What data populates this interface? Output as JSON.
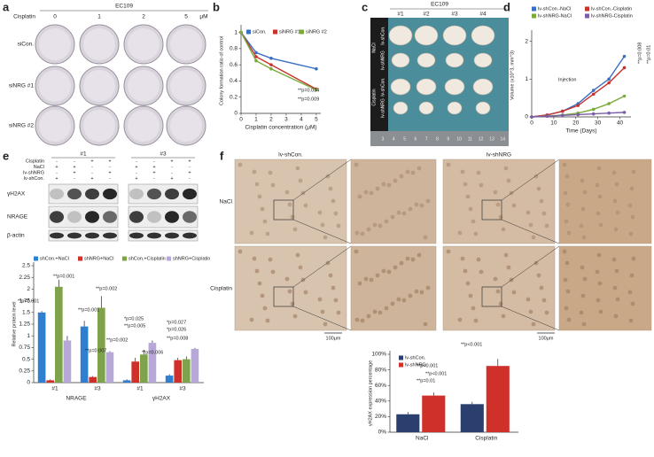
{
  "panels": {
    "a": {
      "letter": "a",
      "title": "EC109",
      "dose_label": "Cisplatin",
      "doses": [
        "0",
        "1",
        "2",
        "5"
      ],
      "unit": "μM",
      "rows": [
        "siCon.",
        "siNRG #1",
        "siNRG #2"
      ]
    },
    "c": {
      "letter": "c",
      "title": "EC109",
      "mice": [
        "#1",
        "#2",
        "#3",
        "#4"
      ],
      "groups": [
        "NaCl",
        "Cisplatin"
      ],
      "rows": [
        "lv-shCon.",
        "lv-shNRG",
        "lv-shCon.",
        "lv-shNRG"
      ],
      "ruler": [
        "3",
        "4",
        "5",
        "6",
        "7",
        "8",
        "9",
        "10",
        "11",
        "12",
        "13",
        "14"
      ]
    },
    "e": {
      "letter": "e",
      "treatments": [
        "Cisplatin",
        "NaCl",
        "lv-shNRG",
        "lv-shCon."
      ],
      "signs": [
        [
          "-",
          "-",
          "+",
          "+",
          "-",
          "-",
          "+",
          "+"
        ],
        [
          "+",
          "+",
          "-",
          "-",
          "+",
          "+",
          "-",
          "-"
        ],
        [
          "-",
          "+",
          "-",
          "+",
          "-",
          "+",
          "-",
          "+"
        ],
        [
          "+",
          "-",
          "+",
          "-",
          "+",
          "-",
          "+",
          "-"
        ]
      ],
      "clones": [
        "#1",
        "#3"
      ],
      "blots": [
        "γH2AX",
        "NRAGE",
        "β-actin"
      ]
    },
    "f": {
      "letter": "f",
      "columns": [
        "lv-shCon.",
        "lv-shNRG"
      ],
      "rows": [
        "NaCl",
        "Cisplatin"
      ],
      "scale_bars": [
        "100μm",
        "100μm"
      ]
    }
  },
  "chart_data": [
    {
      "panel": "b",
      "type": "line",
      "xlabel": "Cisplatin concentration (μM)",
      "ylabel": "Colony formation ratio of control",
      "x": [
        0,
        1,
        2,
        5
      ],
      "xlim": [
        0,
        5.3
      ],
      "xticks": [
        0,
        1,
        2,
        3,
        4,
        5
      ],
      "ylim": [
        0,
        1.05
      ],
      "yticks": [
        0,
        0.2,
        0.4,
        0.6,
        0.8,
        1
      ],
      "legend": "top",
      "series": [
        {
          "name": "siCon.",
          "color": "#3a6fc4",
          "values": [
            1,
            0.75,
            0.68,
            0.55
          ]
        },
        {
          "name": "siNRG #1",
          "color": "#c8322c",
          "values": [
            1,
            0.7,
            0.6,
            0.3
          ]
        },
        {
          "name": "siNRG #2",
          "color": "#7aab3a",
          "values": [
            1,
            0.65,
            0.55,
            0.29
          ]
        }
      ],
      "annotations": [
        "**p=0.034",
        "**p=0.009"
      ]
    },
    {
      "panel": "d",
      "type": "line",
      "xlabel": "Time (Days)",
      "ylabel": "Volume (x10^3, mm^3)",
      "x": [
        0,
        7,
        14,
        21,
        28,
        35,
        42
      ],
      "xlim": [
        0,
        45
      ],
      "xticks": [
        0,
        10,
        20,
        30,
        40
      ],
      "ylim": [
        0,
        2.2
      ],
      "yticks": [
        0,
        1,
        2
      ],
      "legend": "upper left",
      "series": [
        {
          "name": "lv-shCon.-NaCl",
          "color": "#3a6fc4",
          "values": [
            0,
            0.05,
            0.15,
            0.35,
            0.7,
            1.0,
            1.6
          ]
        },
        {
          "name": "lv-shCon.-Cisplatin",
          "color": "#c8322c",
          "values": [
            0,
            0.05,
            0.15,
            0.3,
            0.6,
            0.9,
            1.3
          ]
        },
        {
          "name": "lv-shNRG-NaCl",
          "color": "#7aab3a",
          "values": [
            0,
            0.02,
            0.05,
            0.1,
            0.2,
            0.35,
            0.55
          ]
        },
        {
          "name": "lv-shNRG-Cisplatin",
          "color": "#7a5ca8",
          "values": [
            0,
            0.02,
            0.04,
            0.06,
            0.08,
            0.1,
            0.12
          ]
        }
      ],
      "annotations": [
        "Injection",
        "**p=0.008",
        "**p=0.01"
      ]
    },
    {
      "type": "bar",
      "ylabel": "Relative protein level",
      "categories": [
        "#1",
        "#3",
        "#1",
        "#3"
      ],
      "groups": [
        "NRAGE",
        "γH2AX"
      ],
      "ylim": [
        0,
        2.5
      ],
      "yticks": [
        0,
        {
          "value": 0.25,
          "label": "0.25"
        },
        0.5,
        {
          "value": 0.75,
          "label": "0.75"
        },
        1,
        1.25,
        1.5,
        1.75,
        2,
        2.25,
        2.5
      ],
      "legend": "top",
      "series": [
        {
          "name": "shCon.+NaCl",
          "color": "#2f7fd0",
          "values": [
            1.5,
            1.2,
            0.05,
            0.15
          ],
          "errors": [
            0.03,
            0.12,
            0.02,
            0.03
          ]
        },
        {
          "name": "shNRG+NaCl",
          "color": "#d0302a",
          "values": [
            0.05,
            0.12,
            0.45,
            0.48
          ],
          "errors": [
            0.02,
            0.02,
            0.08,
            0.05
          ]
        },
        {
          "name": "shCon.+Cisplatin",
          "color": "#7fa34a",
          "values": [
            2.05,
            1.6,
            0.6,
            0.5
          ],
          "errors": [
            0.15,
            0.25,
            0.1,
            0.06
          ]
        },
        {
          "name": "shNRG+Cisplatin",
          "color": "#b8a8d8",
          "values": [
            0.9,
            0.65,
            0.85,
            0.72
          ],
          "errors": [
            0.1,
            0.02,
            0.05,
            0.02
          ]
        }
      ],
      "annotations": [
        "**p<0.001",
        "**p=0.001",
        "**p=0.001",
        "**p=0.002",
        "*p=0.025",
        "**p=0.005",
        "*p=0.027",
        "**p=0.002",
        "**p=0.007",
        "**p=0.008",
        "*p=0.026",
        "**p=0.006"
      ]
    },
    {
      "type": "bar",
      "ylabel": "γH2AX expression percentage",
      "categories": [
        "NaCl",
        "Cisplatin"
      ],
      "ylim": [
        0,
        100
      ],
      "yticks": [
        {
          "value": 0,
          "label": "0%"
        },
        {
          "value": 20,
          "label": "20%"
        },
        {
          "value": 40,
          "label": "40%"
        },
        {
          "value": 60,
          "label": "60%"
        },
        {
          "value": 80,
          "label": "80%"
        },
        {
          "value": 100,
          "label": "100%"
        }
      ],
      "legend": "upper left",
      "series": [
        {
          "name": "lv-shCon.",
          "color": "#2b3f6e",
          "values": [
            23,
            36
          ],
          "errors": [
            3,
            3
          ]
        },
        {
          "name": "lv-shNRG",
          "color": "#d0302a",
          "values": [
            47,
            85
          ],
          "errors": [
            4,
            9
          ]
        }
      ],
      "annotations": [
        "**p<0.001",
        "**p<0.001",
        "**p=0.01",
        "**p<0.001"
      ]
    }
  ]
}
